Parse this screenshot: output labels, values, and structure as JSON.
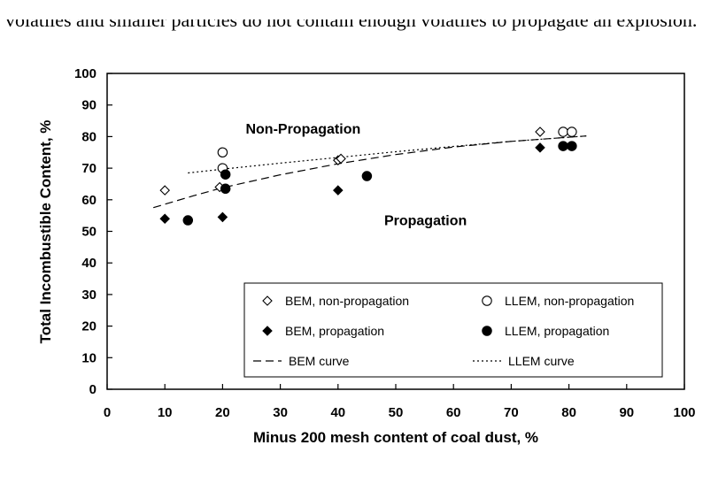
{
  "caption": "volatiles and smaller particles do not contain enough volatiles to propagate an explosion.",
  "chart_data": {
    "type": "scatter",
    "xlabel": "Minus 200 mesh content of coal dust, %",
    "ylabel": "Total Incombustible Content, %",
    "xlim": [
      0,
      100
    ],
    "ylim": [
      0,
      100
    ],
    "xticks": [
      0,
      10,
      20,
      30,
      40,
      50,
      60,
      70,
      80,
      90,
      100
    ],
    "yticks": [
      0,
      10,
      20,
      30,
      40,
      50,
      60,
      70,
      80,
      90,
      100
    ],
    "grid": false,
    "legend_position": "bottom-right inside",
    "annotations": [
      {
        "text": "Non-Propagation",
        "x": 24,
        "y": 81
      },
      {
        "text": "Propagation",
        "x": 48,
        "y": 52
      }
    ],
    "series": [
      {
        "name": "BEM, non-propagation",
        "marker": "open-diamond",
        "points": [
          [
            10,
            63
          ],
          [
            19.5,
            64
          ],
          [
            40,
            72.5
          ],
          [
            40.5,
            73
          ],
          [
            75,
            81.5
          ]
        ]
      },
      {
        "name": "LLEM, non-propagation",
        "marker": "open-circle",
        "points": [
          [
            20,
            75
          ],
          [
            20,
            70
          ],
          [
            79,
            81.5
          ],
          [
            80.5,
            81.5
          ]
        ]
      },
      {
        "name": "BEM, propagation",
        "marker": "filled-diamond",
        "points": [
          [
            10,
            54
          ],
          [
            20,
            54.5
          ],
          [
            40,
            63
          ],
          [
            75,
            76.5
          ]
        ]
      },
      {
        "name": "LLEM, propagation",
        "marker": "filled-circle",
        "points": [
          [
            14,
            53.5
          ],
          [
            20.5,
            68
          ],
          [
            20.5,
            63.5
          ],
          [
            45,
            67.5
          ],
          [
            79,
            77
          ],
          [
            80.5,
            77
          ]
        ]
      },
      {
        "name": "BEM curve",
        "line": "dashed",
        "points": [
          [
            8,
            57.5
          ],
          [
            15,
            61.3
          ],
          [
            20,
            63.8
          ],
          [
            30,
            67.9
          ],
          [
            40,
            71.4
          ],
          [
            50,
            74.3
          ],
          [
            60,
            76.7
          ],
          [
            70,
            78.5
          ],
          [
            83,
            80.2
          ]
        ]
      },
      {
        "name": "LLEM curve",
        "line": "dotted",
        "points": [
          [
            14,
            68.5
          ],
          [
            20,
            69.7
          ],
          [
            30,
            71.6
          ],
          [
            40,
            73.4
          ],
          [
            50,
            75.2
          ],
          [
            60,
            76.9
          ],
          [
            70,
            78.5
          ],
          [
            83,
            80.2
          ]
        ]
      }
    ]
  }
}
